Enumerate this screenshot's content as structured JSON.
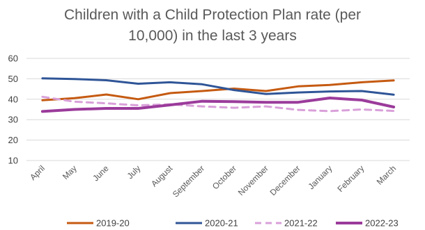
{
  "chart_data": {
    "type": "line",
    "title_lines": [
      "Children with a Child Protection Plan rate (per",
      "10,000) in the last 3 years"
    ],
    "xlabel": "",
    "ylabel": "",
    "categories": [
      "April",
      "May",
      "June",
      "July",
      "August",
      "September",
      "October",
      "November",
      "December",
      "January",
      "February",
      "March"
    ],
    "ylim": [
      10,
      60
    ],
    "yticks": [
      "10",
      "20",
      "30",
      "40",
      "50",
      "60"
    ],
    "grid": true,
    "legend_position": "bottom",
    "series": [
      {
        "name": "2019-20",
        "color": "#c55a11",
        "dash": "solid",
        "width": 3,
        "values": [
          39.5,
          40.5,
          42.3,
          40.0,
          43.0,
          44.0,
          45.2,
          44.0,
          46.3,
          47.0,
          48.3,
          49.2
        ]
      },
      {
        "name": "2020-21",
        "color": "#2f5597",
        "dash": "solid",
        "width": 3,
        "values": [
          50.2,
          49.9,
          49.3,
          47.6,
          48.3,
          47.3,
          44.5,
          42.6,
          43.3,
          43.8,
          44.0,
          42.2
        ]
      },
      {
        "name": "2021-22",
        "color": "#d9a0d9",
        "dash": "dashed",
        "width": 3,
        "values": [
          41.2,
          38.8,
          38.0,
          37.0,
          37.5,
          36.5,
          35.8,
          36.5,
          34.8,
          34.2,
          35.0,
          34.3
        ]
      },
      {
        "name": "2022-23",
        "color": "#9b3b9b",
        "dash": "solid",
        "width": 4,
        "values": [
          34.0,
          35.0,
          35.5,
          35.5,
          37.2,
          39.0,
          38.8,
          38.5,
          38.5,
          40.6,
          39.6,
          36.2
        ]
      }
    ]
  }
}
